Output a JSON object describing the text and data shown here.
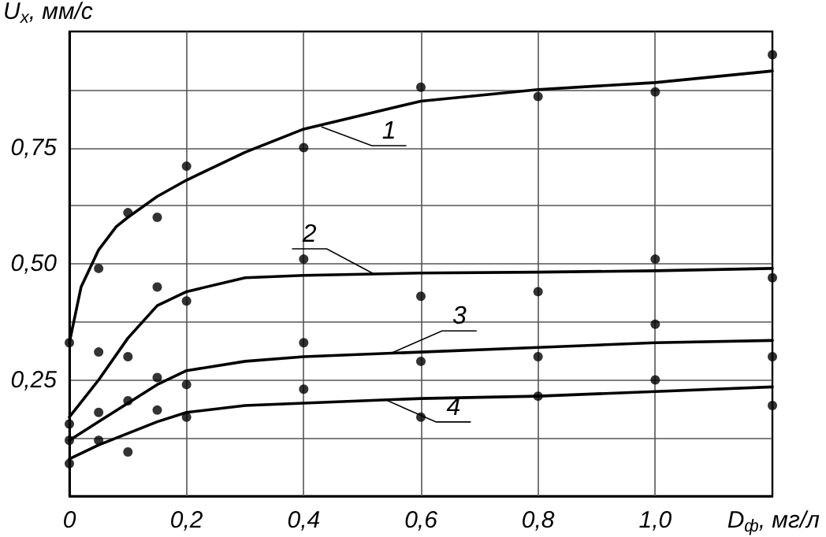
{
  "chart_data": {
    "type": "scatter",
    "xlabel": "D$_{ф}$, мг/л",
    "ylabel": "U$_{x}$, мм/с",
    "xlim": [
      0,
      1.2
    ],
    "xticks": [
      0,
      {
        "value": 0.2,
        "label": "0,2"
      },
      {
        "value": 0.4,
        "label": "0,4"
      },
      {
        "value": 0.6,
        "label": "0,6"
      },
      {
        "value": 0.8,
        "label": "0,8"
      },
      {
        "value": 1.0,
        "label": "1,0"
      }
    ],
    "ylim": [
      0,
      1
    ],
    "yticks": [
      {
        "value": 0.125,
        "label": null
      },
      {
        "value": 0.25,
        "label": "0,25"
      },
      {
        "value": 0.375,
        "label": null
      },
      {
        "value": 0.5,
        "label": "0,50"
      },
      {
        "value": 0.625,
        "label": null
      },
      {
        "value": 0.75,
        "label": "0,75"
      },
      {
        "value": 0.875,
        "label": null
      }
    ],
    "grid": true,
    "marker": "circle",
    "x": [
      0,
      0.05,
      0.1,
      0.15,
      0.2,
      0.4,
      0.6,
      0.8,
      1.0,
      1.2
    ],
    "series": [
      {
        "color": "#000000",
        "values": [
          0.33,
          0.49,
          0.61,
          0.6,
          0.71,
          0.75,
          0.88,
          0.86,
          0.87,
          0.95
        ]
      },
      {
        "color": "#000000",
        "values": [
          0.155,
          0.31,
          0.3,
          0.45,
          0.42,
          0.51,
          0.43,
          0.44,
          0.51,
          0.47
        ]
      },
      {
        "color": "#000000",
        "values": [
          0.12,
          0.18,
          0.205,
          0.255,
          0.24,
          0.33,
          0.29,
          0.3,
          0.37,
          0.3
        ]
      },
      {
        "color": "#000000",
        "values": [
          0.07,
          0.12,
          0.095,
          0.185,
          0.17,
          0.23,
          0.17,
          0.215,
          0.25,
          0.195
        ]
      },
      {
        "type": "line",
        "color": "#000000",
        "line_style": "solid",
        "marker": "none",
        "x": [
          0,
          0.02,
          0.05,
          0.08,
          0.1,
          0.15,
          0.2,
          0.3,
          0.4,
          0.6,
          0.8,
          1.0,
          1.2
        ],
        "values": [
          0.33,
          0.45,
          0.53,
          0.58,
          0.6,
          0.645,
          0.68,
          0.74,
          0.79,
          0.85,
          0.875,
          0.89,
          0.915
        ]
      },
      {
        "type": "line",
        "color": "#000000",
        "line_style": "solid",
        "marker": "none",
        "x": [
          0,
          0.05,
          0.1,
          0.15,
          0.2,
          0.3,
          0.4,
          0.6,
          0.8,
          1.0,
          1.2
        ],
        "values": [
          0.17,
          0.25,
          0.34,
          0.41,
          0.44,
          0.47,
          0.475,
          0.48,
          0.482,
          0.485,
          0.49
        ]
      },
      {
        "type": "line",
        "color": "#000000",
        "line_style": "solid",
        "marker": "none",
        "x": [
          0,
          0.05,
          0.1,
          0.15,
          0.2,
          0.3,
          0.4,
          0.6,
          0.8,
          1.0,
          1.2
        ],
        "values": [
          0.12,
          0.16,
          0.2,
          0.24,
          0.27,
          0.29,
          0.3,
          0.31,
          0.32,
          0.33,
          0.335
        ]
      },
      {
        "type": "line",
        "color": "#000000",
        "line_style": "solid",
        "marker": "none",
        "x": [
          0,
          0.05,
          0.1,
          0.15,
          0.2,
          0.3,
          0.4,
          0.6,
          0.8,
          1.0,
          1.2
        ],
        "values": [
          0.08,
          0.11,
          0.135,
          0.16,
          0.18,
          0.195,
          0.2,
          0.21,
          0.215,
          0.225,
          0.235
        ]
      }
    ],
    "annotations": [
      {
        "text": "1",
        "x": 0.43,
        "y": 0.795
      },
      {
        "text": "2",
        "x": 0.52,
        "y": 0.478
      },
      {
        "text": "3",
        "x": 0.55,
        "y": 0.308
      },
      {
        "text": "4",
        "x": 0.54,
        "y": 0.207
      }
    ]
  }
}
